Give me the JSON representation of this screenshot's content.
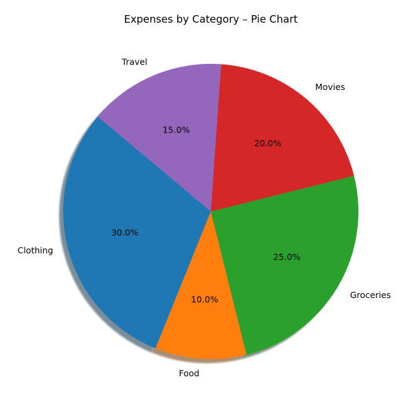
{
  "chart_data": {
    "type": "pie",
    "title": "Expenses by Category – Pie Chart",
    "categories": [
      "Clothing",
      "Food",
      "Groceries",
      "Movies",
      "Travel"
    ],
    "values": [
      30,
      10,
      25,
      20,
      15
    ],
    "percent_labels": [
      "30.0%",
      "10.0%",
      "25.0%",
      "20.0%",
      "15.0%"
    ],
    "colors": [
      "#1f77b4",
      "#ff7f0e",
      "#2ca02c",
      "#d62728",
      "#9467bd"
    ],
    "start_angle_deg": 140,
    "direction": "counterclockwise",
    "shadow": true,
    "legend": "none"
  }
}
